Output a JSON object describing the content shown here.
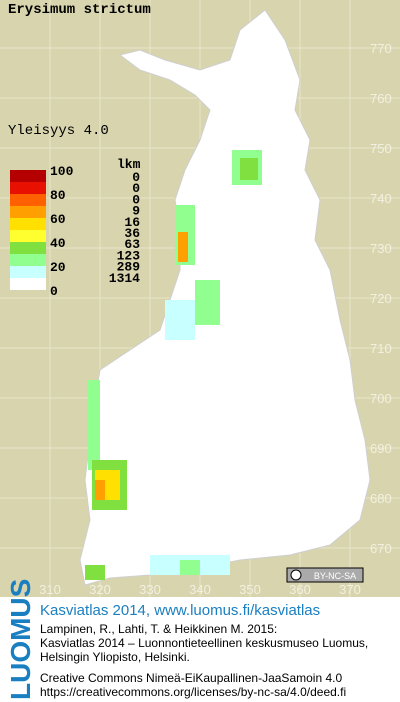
{
  "map": {
    "title": "Erysimum strictum",
    "legend": {
      "heading": "Yleisyys 4.0",
      "count_heading": "lkm",
      "scale_labels": [
        "100",
        "80",
        "60",
        "40",
        "20",
        "0"
      ],
      "counts": [
        "0",
        "0",
        "0",
        "9",
        "16",
        "36",
        "63",
        "123",
        "289",
        "1314"
      ],
      "colors": [
        "#b40000",
        "#e81000",
        "#ff6000",
        "#ffa000",
        "#ffe000",
        "#ffff30",
        "#80e040",
        "#90ff90",
        "#c8ffff",
        "#ffffff"
      ]
    },
    "y_labels": [
      "770",
      "760",
      "750",
      "740",
      "730",
      "720",
      "710",
      "700",
      "690",
      "680",
      "670"
    ],
    "x_labels": [
      "310",
      "320",
      "330",
      "340",
      "350",
      "360",
      "370"
    ],
    "license_badge": "BY-NC-SA"
  },
  "footer": {
    "brand": "LUOMUS",
    "headline": "Kasviatlas 2014, www.luomus.fi/kasviatlas",
    "lines": [
      "Lampinen, R., Lahti, T. & Heikkinen M. 2015:",
      "Kasviatlas 2014 – Luonnontieteellinen keskusmuseo Luomus,",
      "Helsingin Yliopisto, Helsinki."
    ],
    "license_lines": [
      "Creative Commons Nimeä-EiKaupallinen-JaaSamoin 4.0",
      "https://creativecommons.org/licenses/by-nc-sa/4.0/deed.fi"
    ]
  }
}
